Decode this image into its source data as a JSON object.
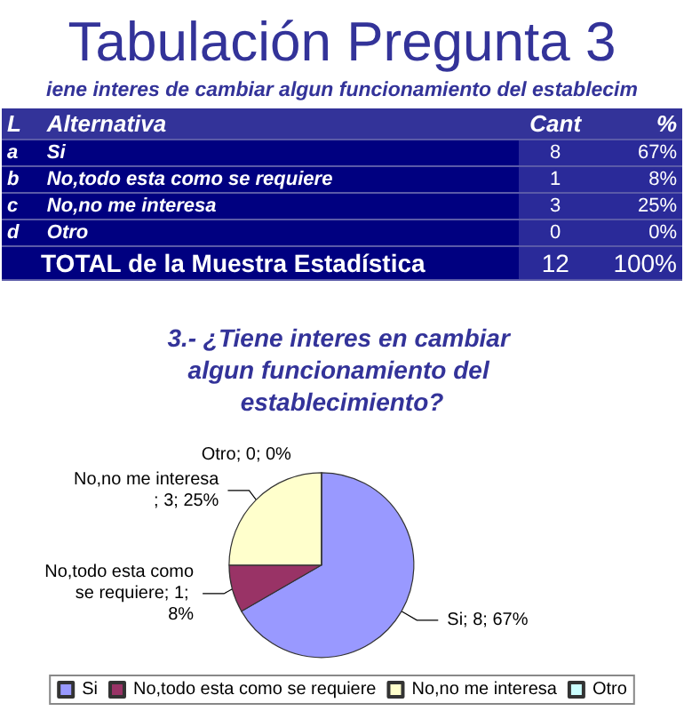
{
  "chart_data": [
    {
      "type": "other",
      "title": "Tabulación Pregunta 3",
      "subtitle": "iene interes de cambiar algun funcionamiento del establecim",
      "annotations": [
        "L",
        "Alternativa",
        "Cant",
        "%",
        "a",
        "Si",
        "8",
        "67%",
        "b",
        "No,todo esta como se requiere",
        "1",
        "8%",
        "c",
        "No,no me interesa",
        "3",
        "25%",
        "d",
        "Otro",
        "0",
        "0%",
        null,
        "TOTAL de la Muestra Estadística",
        "12",
        "100%"
      ]
    },
    {
      "type": "pie",
      "title": "3.- ¿Tiene interes en cambiar algun funcionamiento del establecimiento?",
      "categories": [
        "Si",
        "No,todo esta como se requiere",
        "No,no me interesa",
        "Otro"
      ],
      "values": [
        8,
        1,
        3,
        0
      ],
      "colors": [
        "#9999ff",
        "#993366",
        "#ffffcc",
        "#ccffff"
      ],
      "value_labels": [
        "Si; 8; 67%",
        "No,todo esta como se requiere; 1; 8%",
        "No,no me interesa; 3; 25%",
        "Otro; 0; 0%"
      ],
      "legend": "bottom"
    }
  ]
}
